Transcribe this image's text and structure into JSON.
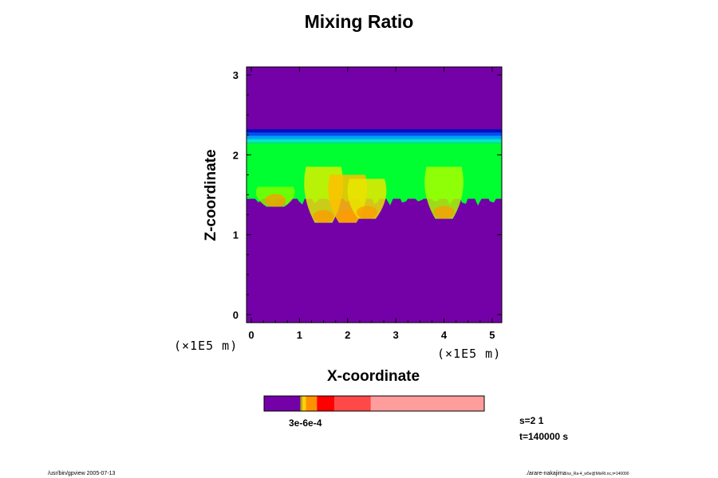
{
  "chart_data": {
    "type": "heatmap",
    "title": "Mixing Ratio",
    "xlabel": "X-coordinate",
    "ylabel": "Z-coordinate",
    "x_unit": "(×1E5 m)",
    "z_unit": "(×1E5 m)",
    "xlim": [
      -0.1,
      5.2
    ],
    "ylim": [
      -0.1,
      3.1
    ],
    "x_ticks": [
      "0",
      "1",
      "2",
      "3",
      "4",
      "5"
    ],
    "y_ticks": [
      "0",
      "1",
      "2",
      "3"
    ],
    "background_color": "#7400a8",
    "layers": [
      {
        "z_range": [
          2.28,
          2.32
        ],
        "color": "#0010c0"
      },
      {
        "z_range": [
          2.24,
          2.28
        ],
        "color": "#0050f0"
      },
      {
        "z_range": [
          2.2,
          2.24
        ],
        "color": "#00a0ff"
      },
      {
        "z_range": [
          2.15,
          2.2
        ],
        "color": "#00e8c8"
      },
      {
        "z_range": [
          1.45,
          2.15
        ],
        "color": "#00ff30"
      }
    ],
    "plumes": [
      {
        "x": 0.5,
        "z_top": 1.6,
        "z_bottom": 1.35,
        "color": "#7cff00"
      },
      {
        "x": 1.5,
        "z_top": 1.85,
        "z_bottom": 1.15,
        "color": "#d8f000"
      },
      {
        "x": 2.0,
        "z_top": 1.75,
        "z_bottom": 1.15,
        "color": "#ffc000"
      },
      {
        "x": 2.4,
        "z_top": 1.7,
        "z_bottom": 1.2,
        "color": "#e8e800"
      },
      {
        "x": 4.0,
        "z_top": 1.85,
        "z_bottom": 1.2,
        "color": "#a8ff00"
      }
    ],
    "colorbar": {
      "segments": [
        {
          "color": "#7400a8",
          "frac": 0.165
        },
        {
          "color": "#b0b000",
          "frac": 0.01
        },
        {
          "color": "#ffd000",
          "frac": 0.015
        },
        {
          "color": "#ff9000",
          "frac": 0.05
        },
        {
          "color": "#ff0000",
          "frac": 0.08
        },
        {
          "color": "#ff4848",
          "frac": 0.165
        },
        {
          "color": "#ff9c9c",
          "frac": 0.515
        }
      ],
      "label": "3e-6e-4"
    },
    "annotations": {
      "s": "s=2 1",
      "t": "t=140000 s"
    }
  },
  "footer": {
    "left": "/usr/bin/gpview 2005-07-13",
    "right_main": "./arare-nakajima",
    "right_small": "/ss_Ra-4_w5e@MixRt.nc,t=140000"
  }
}
